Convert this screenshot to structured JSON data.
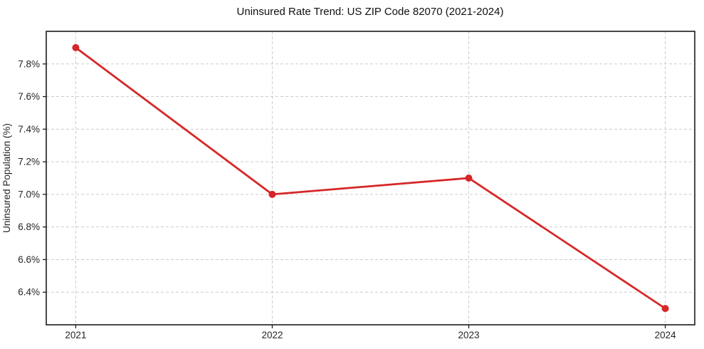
{
  "chart_data": {
    "type": "line",
    "title": "Uninsured Rate Trend: US ZIP Code 82070 (2021-2024)",
    "ylabel": "Uninsured Population (%)",
    "xlabel": "",
    "categories": [
      "2021",
      "2022",
      "2023",
      "2024"
    ],
    "values": [
      7.9,
      7.0,
      7.1,
      6.3
    ],
    "yticks": [
      6.4,
      6.6,
      6.8,
      7.0,
      7.2,
      7.4,
      7.6,
      7.8
    ],
    "ytick_labels": [
      "6.4%",
      "6.6%",
      "6.8%",
      "7.0%",
      "7.2%",
      "7.4%",
      "7.6%",
      "7.8%"
    ],
    "ylim": [
      6.2,
      8.0
    ],
    "xlim": [
      -0.15,
      3.15
    ],
    "grid": "dashed",
    "legend": "none",
    "colors": {
      "line": "#d62728",
      "marker": "#d62728",
      "grid": "#cccccc",
      "spine": "#1a1a1a",
      "tick": "#1a1a1a",
      "tick_label": "#262626",
      "title": "#111111",
      "background": "#ffffff"
    }
  }
}
